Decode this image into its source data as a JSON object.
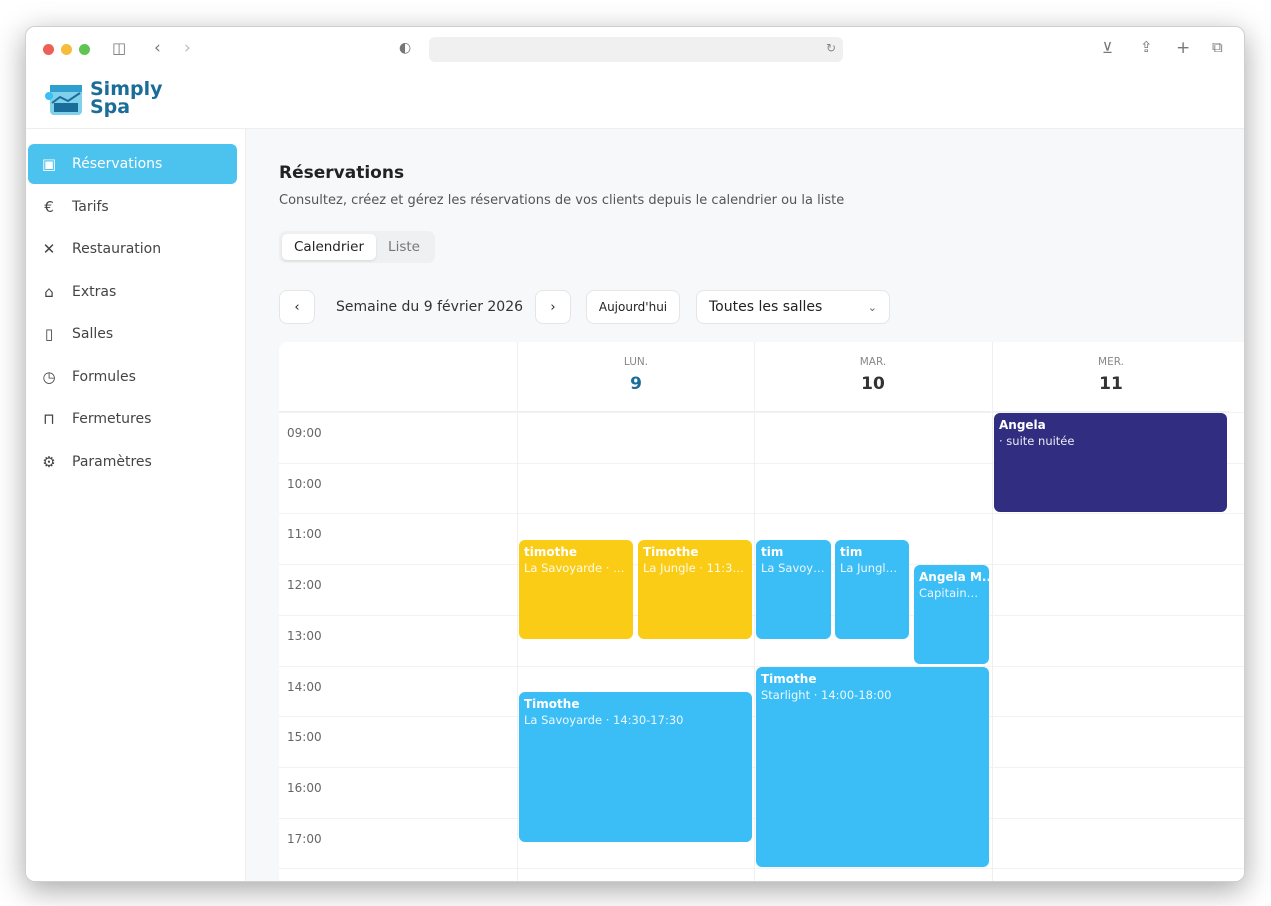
{
  "app": {
    "logo_text_1": "Simply",
    "logo_text_2": "Spa"
  },
  "sidebar": {
    "items": [
      {
        "label": "Réservations",
        "icon": "calendar-check-icon",
        "glyph": "▣"
      },
      {
        "label": "Tarifs",
        "icon": "euro-icon",
        "glyph": "€"
      },
      {
        "label": "Restauration",
        "icon": "utensils-icon",
        "glyph": "✕"
      },
      {
        "label": "Extras",
        "icon": "tag-icon",
        "glyph": "⌂"
      },
      {
        "label": "Salles",
        "icon": "door-icon",
        "glyph": "▯"
      },
      {
        "label": "Formules",
        "icon": "clock-icon",
        "glyph": "◷"
      },
      {
        "label": "Fermetures",
        "icon": "door-closed-icon",
        "glyph": "⊓"
      },
      {
        "label": "Paramètres",
        "icon": "gear-icon",
        "glyph": "⚙"
      }
    ]
  },
  "page": {
    "title": "Réservations",
    "subtitle": "Consultez, créez et gérez les réservations de vos clients depuis le calendrier ou la liste",
    "tabs": [
      "Calendrier",
      "Liste"
    ],
    "week_label": "Semaine du 9 février 2026",
    "today": "Aujourd'hui",
    "room_filter": "Toutes les salles"
  },
  "calendar": {
    "days": [
      {
        "name": "LUN.",
        "num": "9",
        "today": true
      },
      {
        "name": "MAR.",
        "num": "10"
      },
      {
        "name": "MER.",
        "num": "11"
      }
    ],
    "hours": [
      "09:00",
      "10:00",
      "11:00",
      "12:00",
      "13:00",
      "14:00",
      "15:00",
      "16:00",
      "17:00"
    ],
    "colors": {
      "yellow": "#facc15",
      "blue": "#3bbdf6",
      "navy": "#312e81",
      "today": "#1a6d99"
    },
    "events": [
      {
        "title": "Angela",
        "sub": "· suite nuitée"
      },
      {
        "title": "timothe",
        "sub": "La Savoyarde · 1..."
      },
      {
        "title": "Timothe",
        "sub": "La Jungle · 11:30-..."
      },
      {
        "title": "tim",
        "sub": "La Savoya..."
      },
      {
        "title": "tim",
        "sub": "La Jungle ·..."
      },
      {
        "title": "Angela M...",
        "sub": "Capitaine ..."
      },
      {
        "title": "Timothe",
        "sub": "La Savoyarde · 14:30-17:30"
      },
      {
        "title": "Timothe",
        "sub": "Starlight · 14:00-18:00"
      }
    ]
  }
}
